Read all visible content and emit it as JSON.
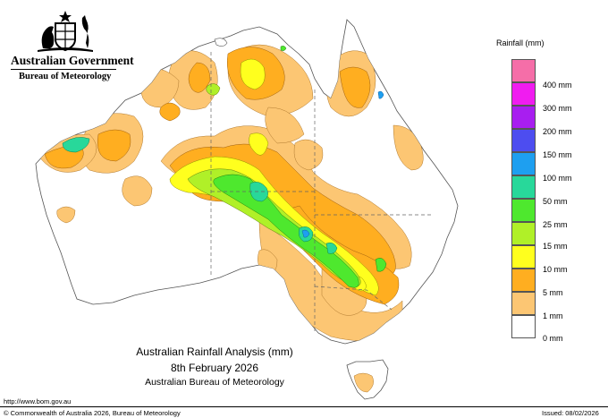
{
  "header": {
    "government": "Australian Government",
    "bureau": "Bureau of Meteorology"
  },
  "legend": {
    "title": "Rainfall (mm)",
    "items": [
      {
        "label": "400 mm",
        "color": "#f56ea8"
      },
      {
        "label": "300 mm",
        "color": "#f01cf0"
      },
      {
        "label": "200 mm",
        "color": "#a81ef0"
      },
      {
        "label": "150 mm",
        "color": "#4d4df0"
      },
      {
        "label": "100 mm",
        "color": "#1e9ff0"
      },
      {
        "label": "50 mm",
        "color": "#28d89a"
      },
      {
        "label": "25 mm",
        "color": "#4ee82e"
      },
      {
        "label": "15 mm",
        "color": "#b0f028"
      },
      {
        "label": "10 mm",
        "color": "#ffff1e"
      },
      {
        "label": "5 mm",
        "color": "#ffae20"
      },
      {
        "label": "1 mm",
        "color": "#fcc673"
      },
      {
        "label": "0 mm",
        "color": "#ffffff"
      }
    ]
  },
  "caption": {
    "line1": "Australian Rainfall Analysis (mm)",
    "line2": "8th February 2026",
    "line3": "Australian Bureau of Meteorology"
  },
  "footer": {
    "url": "http://www.bom.gov.au",
    "copyright": "© Commonwealth of Australia 2026, Bureau of Meteorology",
    "issued": "Issued: 08/02/2026"
  }
}
